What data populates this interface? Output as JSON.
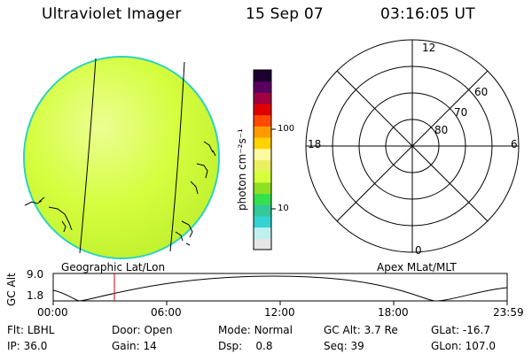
{
  "header": {
    "instrument": "Ultraviolet Imager",
    "date": "15 Sep 07",
    "time": "03:16:05 UT"
  },
  "colors": {
    "disk_fill": "#d6ff3c",
    "disk_edge": "#2ad4c0",
    "orbit_marker": "#cc0000"
  },
  "colorbar": {
    "axis_label": "photon cm⁻²s⁻¹",
    "ticks": [
      "100",
      "10"
    ],
    "scale": "log",
    "colors": [
      "#e6e6e6",
      "#bff0f0",
      "#35d3d3",
      "#32c89a",
      "#36e04c",
      "#8fe020",
      "#d6ff3c",
      "#e8f060",
      "#fffaa0",
      "#ffd200",
      "#ff9a00",
      "#ff4a00",
      "#e00000",
      "#a00040",
      "#5a0060",
      "#1c0030"
    ]
  },
  "left_panel": {
    "caption": "Geographic Lat/Lon"
  },
  "right_panel": {
    "caption": "Apex MLat/MLT",
    "mlt_labels": {
      "top": "12",
      "left": "18",
      "right": "6",
      "bottom": "0"
    },
    "lat_labels": [
      "60",
      "70",
      "80"
    ]
  },
  "orbit_plot": {
    "ylabel": "GC Alt",
    "y_ticks": [
      "9.0",
      "1.8"
    ],
    "x_ticks": [
      "00:00",
      "06:00",
      "12:00",
      "18:00",
      "23:59"
    ]
  },
  "info": {
    "row1": [
      {
        "label": "Flt:",
        "value": "LBHL"
      },
      {
        "label": "Door:",
        "value": "Open"
      },
      {
        "label": "Mode:",
        "value": "Normal"
      },
      {
        "label": "GC Alt:",
        "value": "3.7 Re"
      },
      {
        "label": "GLat:",
        "value": "-16.7"
      }
    ],
    "row2": [
      {
        "label": "IP:",
        "value": "36.0"
      },
      {
        "label": "Gain:",
        "value": "14"
      },
      {
        "label": "Dsp:",
        "value": "0.8"
      },
      {
        "label": "Seq:",
        "value": "39"
      },
      {
        "label": "GLon:",
        "value": "107.0"
      }
    ]
  }
}
